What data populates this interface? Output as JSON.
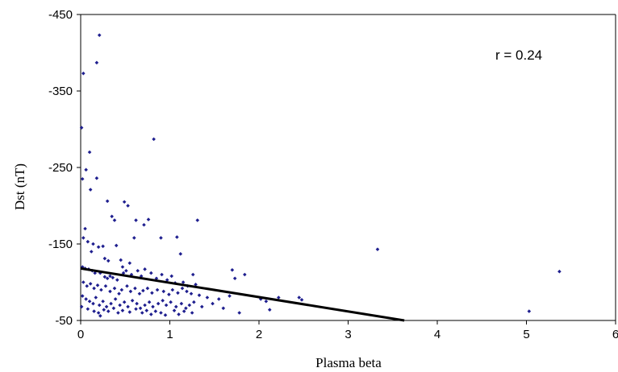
{
  "chart_data": {
    "type": "scatter",
    "xlabel": "Plasma beta",
    "ylabel": "Dst (nT)",
    "xlim": [
      0,
      6
    ],
    "ylim": [
      -450,
      -50
    ],
    "y_reversed": true,
    "x_ticks": [
      "0",
      "1",
      "2",
      "3",
      "4",
      "5",
      "6"
    ],
    "y_ticks": [
      "-450",
      "-350",
      "-250",
      "-150",
      "-50"
    ],
    "y_tick_values": [
      -450,
      -350,
      -250,
      -150,
      -50
    ],
    "grid": false,
    "annotation": "r = 0.24",
    "point_color": "#1f1f8f",
    "line_color": "#000000",
    "trendline": {
      "x": [
        0,
        3.63
      ],
      "y": [
        -118,
        -50
      ]
    },
    "points": [
      [
        0.03,
        -373
      ],
      [
        0.01,
        -302
      ],
      [
        0.1,
        -270
      ],
      [
        0.06,
        -247
      ],
      [
        0.02,
        -235
      ],
      [
        0.11,
        -221
      ],
      [
        0.18,
        -236
      ],
      [
        0.21,
        -423
      ],
      [
        0.18,
        -387
      ],
      [
        0.82,
        -287
      ],
      [
        0.3,
        -206
      ],
      [
        0.49,
        -205
      ],
      [
        0.53,
        -200
      ],
      [
        0.35,
        -186
      ],
      [
        0.38,
        -181
      ],
      [
        0.71,
        -175
      ],
      [
        0.62,
        -181
      ],
      [
        0.76,
        -182
      ],
      [
        1.31,
        -181
      ],
      [
        0.05,
        -170
      ],
      [
        0.03,
        -158
      ],
      [
        0.08,
        -153
      ],
      [
        0.14,
        -150
      ],
      [
        0.2,
        -146
      ],
      [
        0.25,
        -147
      ],
      [
        0.4,
        -148
      ],
      [
        0.6,
        -158
      ],
      [
        0.9,
        -158
      ],
      [
        1.08,
        -159
      ],
      [
        1.12,
        -137
      ],
      [
        0.12,
        -140
      ],
      [
        0.27,
        -131
      ],
      [
        0.31,
        -128
      ],
      [
        0.45,
        -129
      ],
      [
        0.55,
        -125
      ],
      [
        0.47,
        -120
      ],
      [
        3.33,
        -143
      ],
      [
        5.37,
        -114
      ],
      [
        5.03,
        -62
      ],
      [
        1.7,
        -116
      ],
      [
        1.73,
        -105
      ],
      [
        1.84,
        -110
      ],
      [
        0.02,
        -120
      ],
      [
        0.05,
        -118
      ],
      [
        0.09,
        -117
      ],
      [
        0.13,
        -115
      ],
      [
        0.16,
        -112
      ],
      [
        0.22,
        -112
      ],
      [
        0.27,
        -107
      ],
      [
        0.3,
        -105
      ],
      [
        0.33,
        -108
      ],
      [
        0.36,
        -106
      ],
      [
        0.41,
        -103
      ],
      [
        0.48,
        -112
      ],
      [
        0.51,
        -115
      ],
      [
        0.57,
        -110
      ],
      [
        0.64,
        -115
      ],
      [
        0.68,
        -108
      ],
      [
        0.72,
        -117
      ],
      [
        0.79,
        -112
      ],
      [
        0.85,
        -105
      ],
      [
        0.91,
        -110
      ],
      [
        0.97,
        -103
      ],
      [
        1.02,
        -108
      ],
      [
        1.06,
        -99
      ],
      [
        1.15,
        -100
      ],
      [
        1.2,
        -95
      ],
      [
        1.26,
        -110
      ],
      [
        1.29,
        -97
      ],
      [
        0.03,
        -100
      ],
      [
        0.07,
        -95
      ],
      [
        0.11,
        -98
      ],
      [
        0.15,
        -92
      ],
      [
        0.19,
        -96
      ],
      [
        0.23,
        -90
      ],
      [
        0.28,
        -95
      ],
      [
        0.33,
        -88
      ],
      [
        0.38,
        -92
      ],
      [
        0.43,
        -85
      ],
      [
        0.46,
        -90
      ],
      [
        0.52,
        -95
      ],
      [
        0.56,
        -88
      ],
      [
        0.61,
        -92
      ],
      [
        0.66,
        -85
      ],
      [
        0.7,
        -89
      ],
      [
        0.75,
        -92
      ],
      [
        0.8,
        -86
      ],
      [
        0.86,
        -90
      ],
      [
        0.93,
        -88
      ],
      [
        0.99,
        -84
      ],
      [
        1.03,
        -90
      ],
      [
        1.09,
        -86
      ],
      [
        1.14,
        -92
      ],
      [
        1.19,
        -88
      ],
      [
        1.24,
        -85
      ],
      [
        1.33,
        -83
      ],
      [
        1.42,
        -80
      ],
      [
        1.55,
        -78
      ],
      [
        1.67,
        -82
      ],
      [
        2.02,
        -78
      ],
      [
        2.08,
        -75
      ],
      [
        2.22,
        -80
      ],
      [
        2.45,
        -80
      ],
      [
        2.48,
        -77
      ],
      [
        0.02,
        -82
      ],
      [
        0.06,
        -78
      ],
      [
        0.1,
        -75
      ],
      [
        0.14,
        -72
      ],
      [
        0.17,
        -80
      ],
      [
        0.21,
        -70
      ],
      [
        0.25,
        -75
      ],
      [
        0.29,
        -68
      ],
      [
        0.34,
        -72
      ],
      [
        0.39,
        -78
      ],
      [
        0.44,
        -70
      ],
      [
        0.49,
        -74
      ],
      [
        0.53,
        -68
      ],
      [
        0.58,
        -76
      ],
      [
        0.63,
        -72
      ],
      [
        0.67,
        -66
      ],
      [
        0.72,
        -70
      ],
      [
        0.77,
        -74
      ],
      [
        0.81,
        -68
      ],
      [
        0.87,
        -72
      ],
      [
        0.92,
        -76
      ],
      [
        0.96,
        -70
      ],
      [
        1.01,
        -74
      ],
      [
        1.07,
        -68
      ],
      [
        1.13,
        -72
      ],
      [
        1.18,
        -66
      ],
      [
        1.22,
        -70
      ],
      [
        1.27,
        -74
      ],
      [
        1.36,
        -68
      ],
      [
        1.48,
        -72
      ],
      [
        1.6,
        -66
      ],
      [
        1.78,
        -60
      ],
      [
        2.12,
        -64
      ],
      [
        0.01,
        -68
      ],
      [
        0.08,
        -65
      ],
      [
        0.15,
        -62
      ],
      [
        0.2,
        -60
      ],
      [
        0.26,
        -64
      ],
      [
        0.31,
        -62
      ],
      [
        0.37,
        -66
      ],
      [
        0.42,
        -60
      ],
      [
        0.47,
        -63
      ],
      [
        0.55,
        -61
      ],
      [
        0.62,
        -65
      ],
      [
        0.69,
        -60
      ],
      [
        0.74,
        -63
      ],
      [
        0.79,
        -58
      ],
      [
        0.84,
        -62
      ],
      [
        0.9,
        -60
      ],
      [
        1.05,
        -63
      ],
      [
        1.1,
        -58
      ],
      [
        1.16,
        -62
      ],
      [
        1.25,
        -60
      ],
      [
        0.22,
        -56
      ],
      [
        0.95,
        -57
      ]
    ]
  }
}
